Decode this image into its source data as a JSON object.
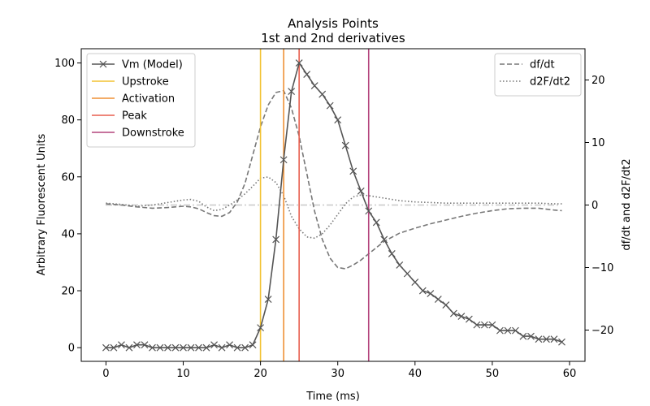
{
  "chart_data": {
    "type": "line",
    "title": "Analysis Points",
    "subtitle": "1st and 2nd derivatives",
    "xlabel": "Time (ms)",
    "ylabel": "Arbitrary Fluorescent Units",
    "y2label": "df/dt and d2F/dt2",
    "xlim": [
      -3.2,
      62
    ],
    "ylim": [
      -4.8,
      105
    ],
    "y2lim": [
      -25,
      25
    ],
    "x_ticks": [
      0,
      10,
      20,
      30,
      40,
      50,
      60
    ],
    "y_ticks": [
      0,
      20,
      40,
      60,
      80,
      100
    ],
    "y2_ticks": [
      -20,
      -10,
      0,
      10,
      20
    ],
    "grid": false,
    "legend_left_position": "upper-left",
    "legend_right_position": "upper-right",
    "vm_series": {
      "name": "Vm (Model)",
      "color": "#555555",
      "marker": "x",
      "x": [
        0,
        1,
        2,
        3,
        4,
        5,
        6,
        7,
        8,
        9,
        10,
        11,
        12,
        13,
        14,
        15,
        16,
        17,
        18,
        19,
        20,
        21,
        22,
        23,
        24,
        25,
        26,
        27,
        28,
        29,
        30,
        31,
        32,
        33,
        34,
        35,
        36,
        37,
        38,
        39,
        40,
        41,
        42,
        43,
        44,
        45,
        46,
        47,
        48,
        49,
        50,
        51,
        52,
        53,
        54,
        55,
        56,
        57,
        58,
        59
      ],
      "y": [
        0,
        0,
        1,
        0,
        1,
        1,
        0,
        0,
        0,
        0,
        0,
        0,
        0,
        0,
        1,
        0,
        1,
        0,
        0,
        1,
        7,
        17,
        38,
        66,
        90,
        100,
        96,
        92,
        89,
        85,
        80,
        71,
        62,
        55,
        48,
        44,
        38,
        33,
        29,
        26,
        23,
        20,
        19,
        17,
        15,
        12,
        11,
        10,
        8,
        8,
        8,
        6,
        6,
        6,
        4,
        4,
        3,
        3,
        3,
        2
      ]
    },
    "dfdt_series": {
      "name": "df/dt",
      "color": "#777777",
      "style": "dashed",
      "x": [
        0,
        2,
        4,
        6,
        8,
        10,
        11,
        12,
        13,
        14,
        15,
        16,
        17,
        18,
        19,
        20,
        21,
        22,
        23,
        24,
        25,
        26,
        27,
        28,
        29,
        30,
        31,
        32,
        33,
        34,
        35,
        36,
        38,
        40,
        42,
        44,
        46,
        48,
        50,
        52,
        54,
        56,
        58,
        59
      ],
      "y": [
        0.2,
        0,
        -0.3,
        -0.5,
        -0.4,
        -0.2,
        -0.3,
        -0.6,
        -1.2,
        -1.7,
        -1.8,
        -1.2,
        0.5,
        3.5,
        8,
        12.5,
        16,
        18,
        18.3,
        15.5,
        11,
        5,
        -1,
        -5.5,
        -8.5,
        -10,
        -10.2,
        -9.6,
        -8.8,
        -7.8,
        -6.8,
        -5.8,
        -4.5,
        -3.7,
        -3,
        -2.4,
        -1.8,
        -1.3,
        -0.9,
        -0.6,
        -0.5,
        -0.5,
        -0.8,
        -0.9
      ]
    },
    "d2fdt2_series": {
      "name": "d2F/dt2",
      "color": "#777777",
      "style": "dotted",
      "x": [
        0,
        2,
        4,
        6,
        8,
        10,
        11,
        12,
        13,
        14,
        15,
        16,
        17,
        18,
        19,
        20,
        21,
        22,
        23,
        24,
        25,
        26,
        27,
        28,
        29,
        30,
        31,
        32,
        33,
        34,
        35,
        36,
        38,
        40,
        42,
        44,
        46,
        48,
        50,
        52,
        54,
        56,
        58,
        59
      ],
      "y": [
        0.3,
        0.1,
        -0.2,
        0,
        0.4,
        0.8,
        0.9,
        0.6,
        -0.3,
        -0.9,
        -0.7,
        0,
        0.8,
        1.8,
        3,
        4.3,
        4.5,
        3.6,
        1.5,
        -1.8,
        -3.8,
        -5.1,
        -5.3,
        -4.6,
        -3.2,
        -1.5,
        0.2,
        1.3,
        1.6,
        1.5,
        1.3,
        1.1,
        0.7,
        0.5,
        0.4,
        0.3,
        0.3,
        0.3,
        0.3,
        0.3,
        0.3,
        0.3,
        0.2,
        0.2
      ]
    },
    "zero_line": {
      "y2": 0,
      "color": "#c8c8c8"
    },
    "vlines": [
      {
        "name": "Upstroke",
        "x": 20,
        "color": "#f2c232"
      },
      {
        "name": "Activation",
        "x": 23,
        "color": "#ef9135"
      },
      {
        "name": "Peak",
        "x": 25,
        "color": "#e85f4f"
      },
      {
        "name": "Downstroke",
        "x": 34,
        "color": "#b4457d"
      }
    ]
  }
}
